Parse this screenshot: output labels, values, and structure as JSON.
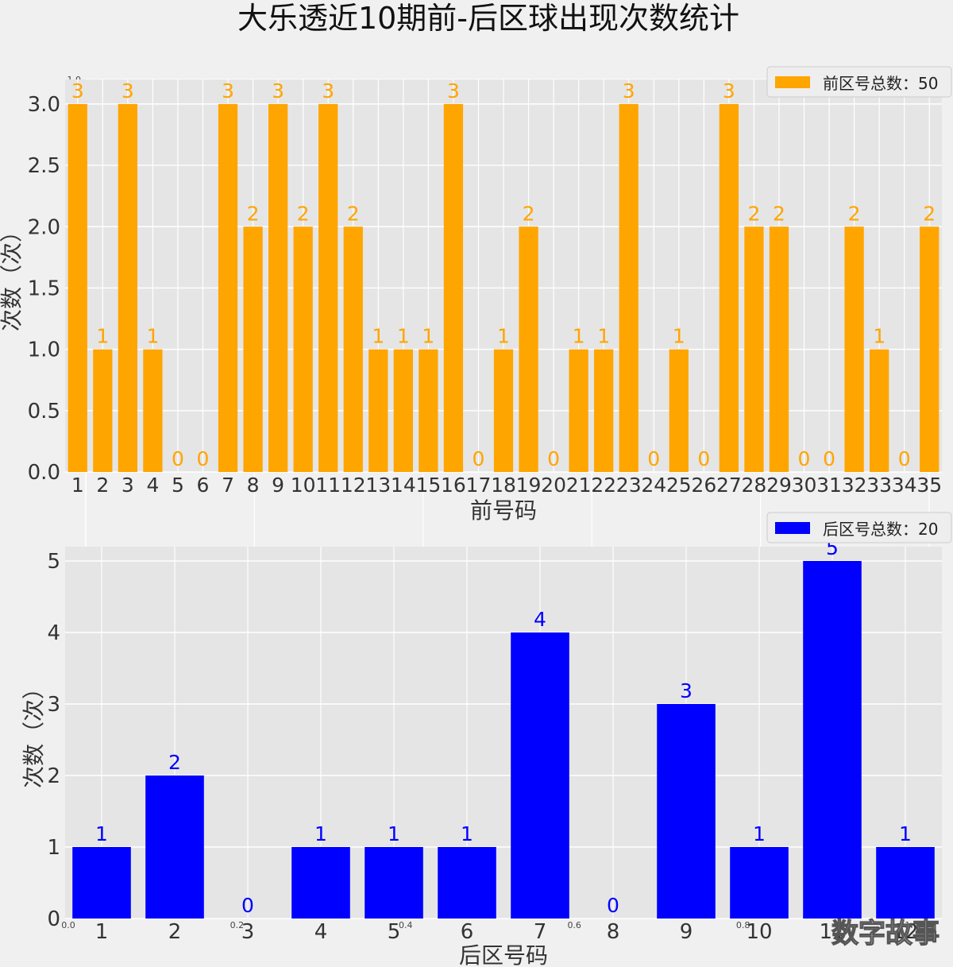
{
  "title": "大乐透近10期前-后区球出现次数统计",
  "watermark": "数字故事",
  "colors": {
    "front": "#ffa500",
    "back": "#0000ff",
    "panel": "#e5e5e5",
    "figure": "#f0f0f0",
    "grid": "#ffffff"
  },
  "chart_data": [
    {
      "type": "bar",
      "categories": [
        "1",
        "2",
        "3",
        "4",
        "5",
        "6",
        "7",
        "8",
        "9",
        "10",
        "11",
        "12",
        "13",
        "14",
        "15",
        "16",
        "17",
        "18",
        "19",
        "20",
        "21",
        "22",
        "23",
        "24",
        "25",
        "26",
        "27",
        "28",
        "29",
        "30",
        "31",
        "32",
        "33",
        "34",
        "35"
      ],
      "values": [
        3,
        1,
        3,
        1,
        0,
        0,
        3,
        2,
        3,
        2,
        3,
        2,
        1,
        1,
        1,
        3,
        0,
        1,
        2,
        0,
        1,
        1,
        3,
        0,
        1,
        0,
        3,
        2,
        2,
        0,
        0,
        2,
        1,
        0,
        2
      ],
      "xlabel": "前号码",
      "ylabel": "次数（次）",
      "ylim": [
        0,
        3.2
      ],
      "yticks": [
        "0.0",
        "0.5",
        "1.0",
        "1.5",
        "2.0",
        "2.5",
        "3.0"
      ],
      "legend": "前区号总数：50",
      "legend_position": "top-right",
      "grid": true,
      "color": "#ffa500"
    },
    {
      "type": "bar",
      "categories": [
        "1",
        "2",
        "3",
        "4",
        "5",
        "6",
        "7",
        "8",
        "9",
        "10",
        "11",
        "12"
      ],
      "values": [
        1,
        2,
        0,
        1,
        1,
        1,
        4,
        0,
        3,
        1,
        5,
        1
      ],
      "xlabel": "后区号码",
      "ylabel": "次数（次）",
      "ylim": [
        0,
        5.2
      ],
      "yticks": [
        "0",
        "1",
        "2",
        "3",
        "4",
        "5"
      ],
      "legend": "后区号总数：20",
      "legend_position": "top-right",
      "grid": true,
      "color": "#0000ff"
    }
  ],
  "background_axis": {
    "y_ticks": [
      "0.0",
      "0.2",
      "0.4",
      "0.6",
      "0.8",
      "1.0"
    ],
    "x_ticks": [
      "0.0",
      "0.2",
      "0.4",
      "0.6",
      "0.8",
      "1.0"
    ]
  }
}
